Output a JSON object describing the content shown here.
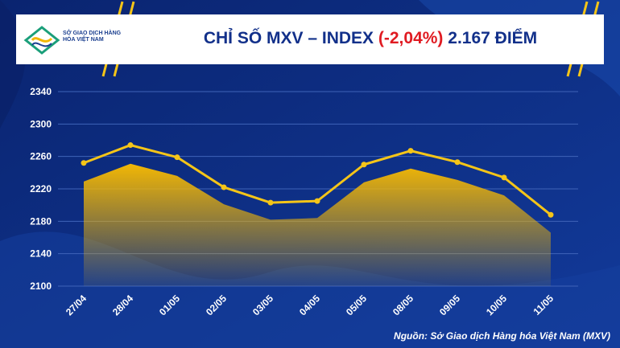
{
  "header": {
    "logo_text": "SỞ GIAO DỊCH HÀNG HÓA VIỆT NAM",
    "title_prefix": "CHỈ SỐ MXV – INDEX",
    "title_change": "(-2,04%)",
    "title_suffix": "2.167 ĐIỂM"
  },
  "source": "Nguồn: Sở Giao dịch Hàng hóa Việt Nam (MXV)",
  "colors": {
    "background": "#0d2a7a",
    "line": "#f5c518",
    "area_top": "#f2b705",
    "accent_red": "#e01b22"
  },
  "chart_data": {
    "type": "area",
    "categories": [
      "27/04",
      "28/04",
      "01/05",
      "02/05",
      "03/05",
      "04/05",
      "05/05",
      "08/05",
      "09/05",
      "10/05",
      "11/05"
    ],
    "series": [
      {
        "values": [
          2252,
          2274,
          2259,
          2222,
          2203,
          2205,
          2250,
          2267,
          2253,
          2234,
          2188
        ]
      },
      {
        "values": [
          2229,
          2251,
          2236,
          2201,
          2182,
          2184,
          2228,
          2245,
          2231,
          2212,
          2166
        ]
      }
    ],
    "yticks": [
      2100,
      2140,
      2180,
      2220,
      2260,
      2300,
      2340
    ],
    "ylim": [
      2100,
      2340
    ],
    "grid": true,
    "legend": "none"
  }
}
